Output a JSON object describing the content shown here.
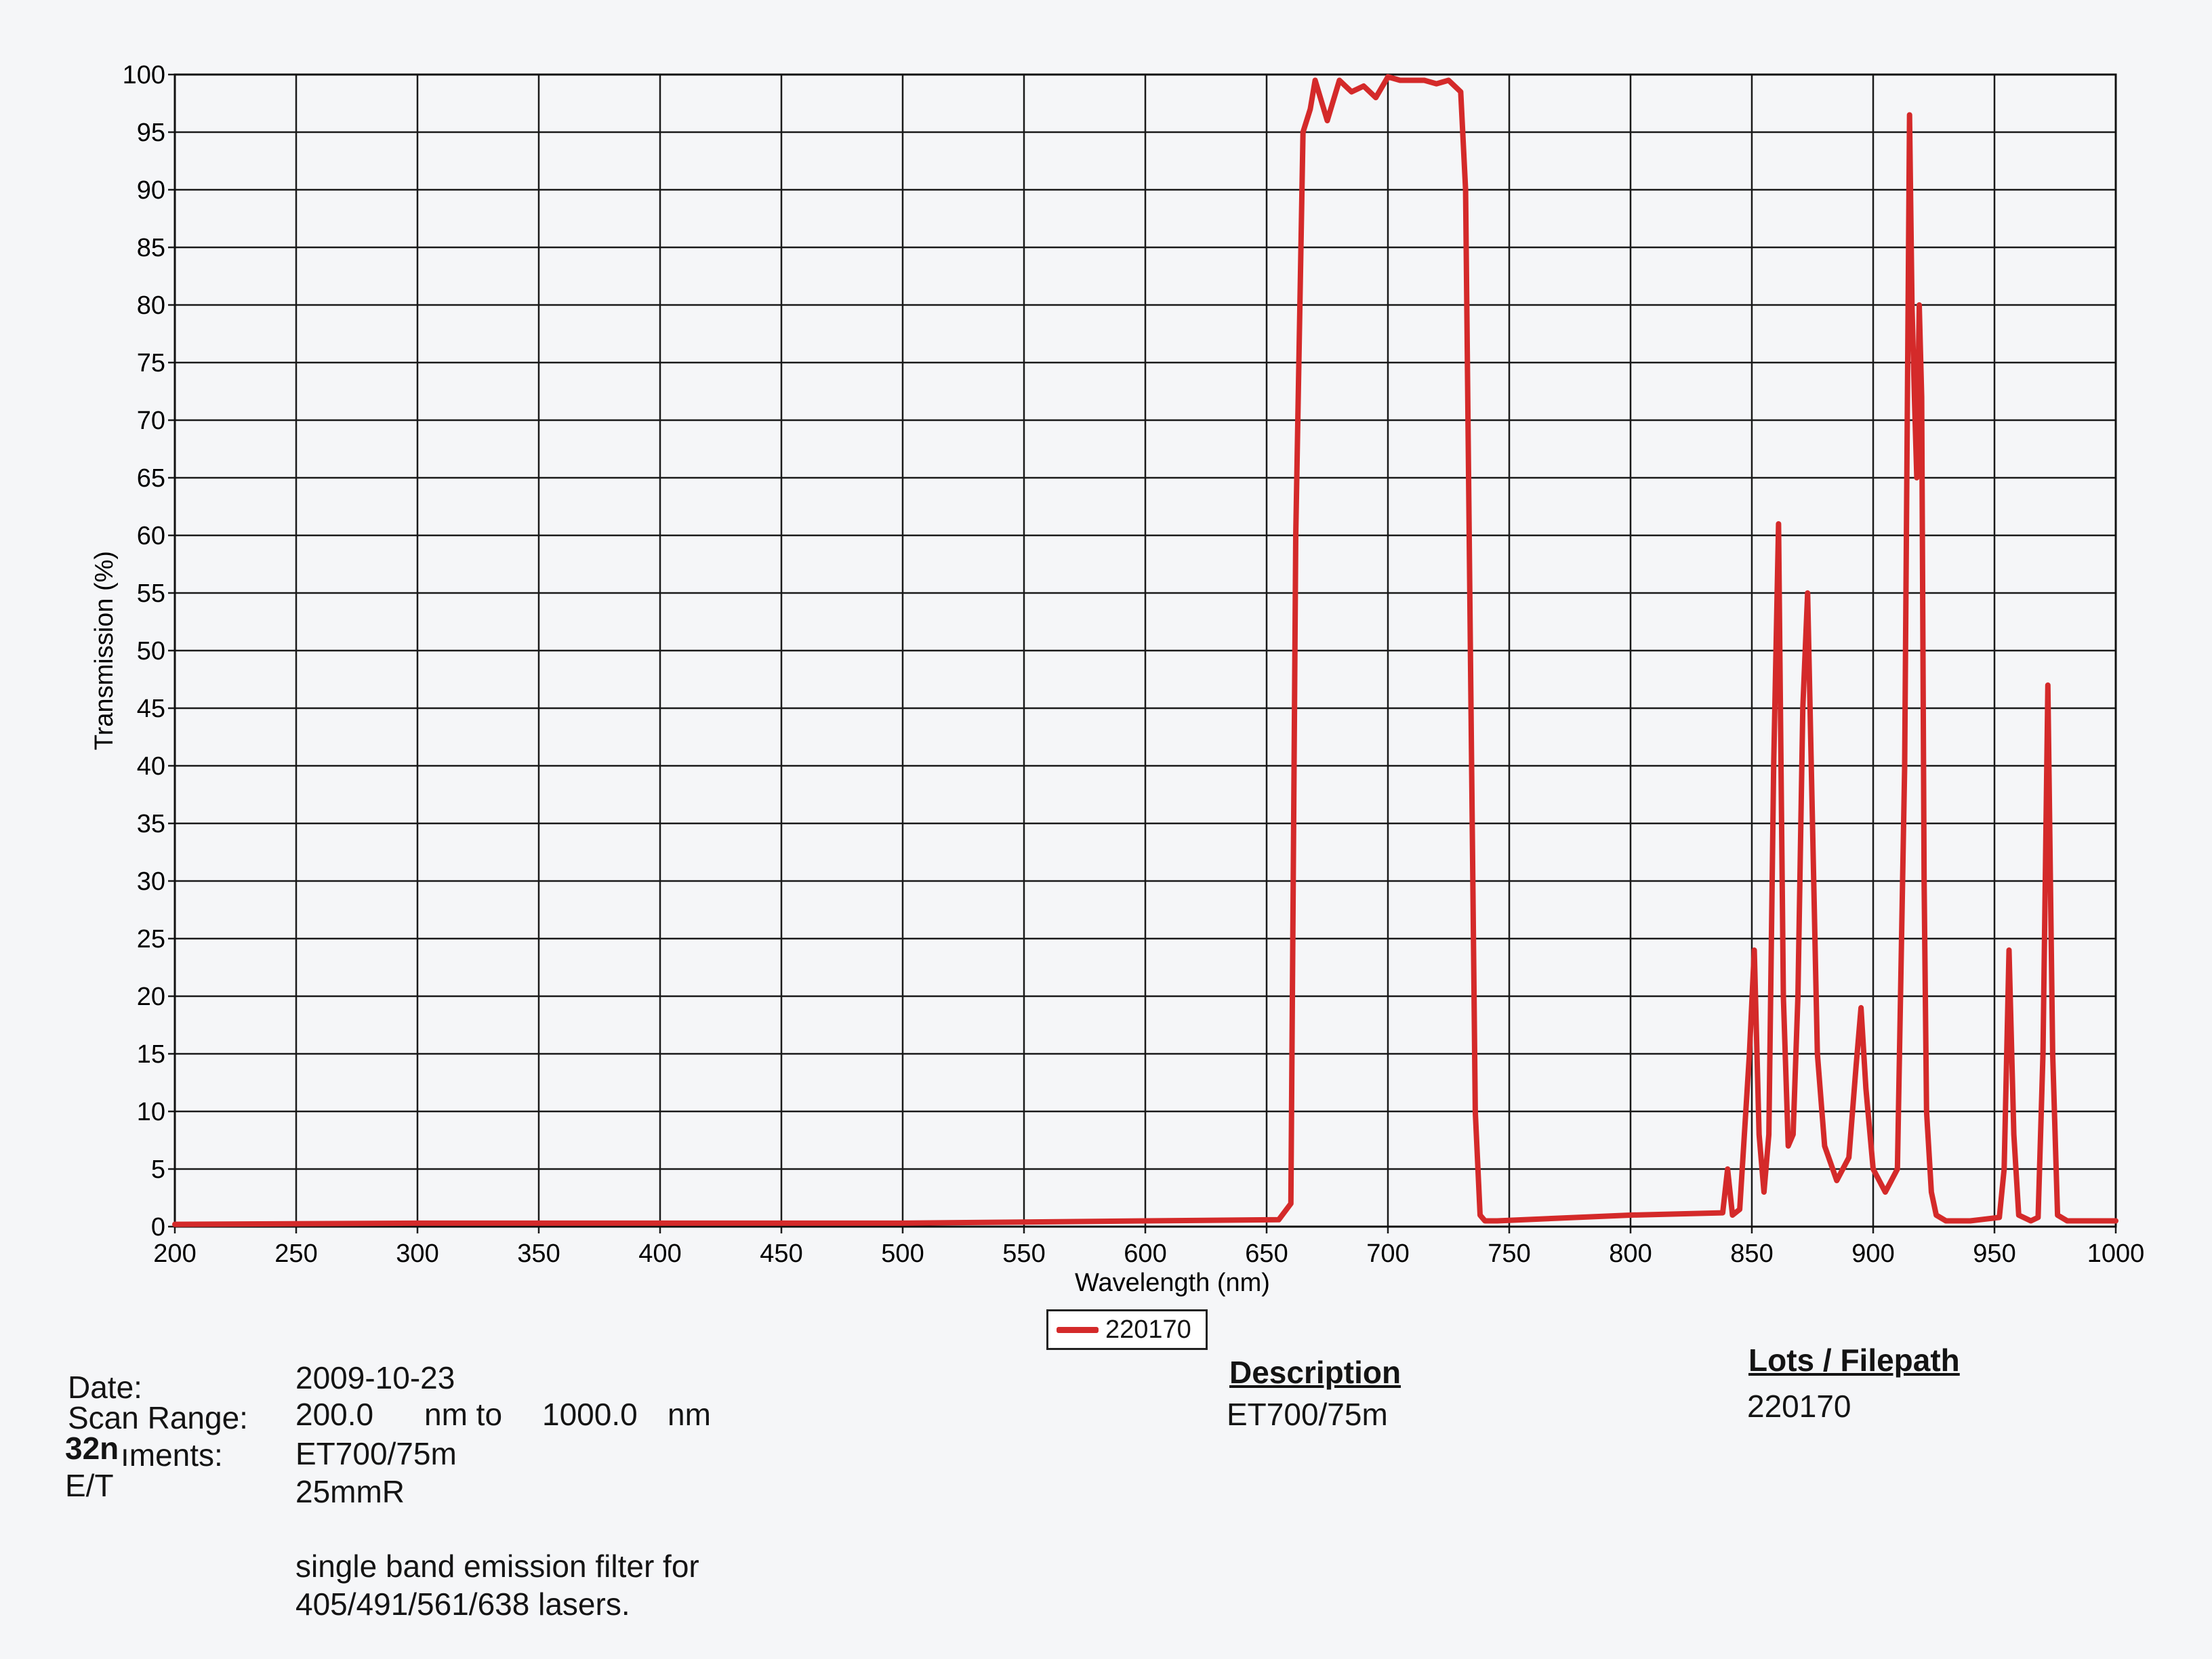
{
  "chart_data": {
    "type": "line",
    "xlabel": "Wavelength (nm)",
    "ylabel": "Transmission (%)",
    "xlim": [
      200,
      1000
    ],
    "ylim": [
      0,
      100
    ],
    "x_ticks": [
      "200",
      "250",
      "300",
      "350",
      "400",
      "450",
      "500",
      "550",
      "600",
      "650",
      "700",
      "750",
      "800",
      "850",
      "900",
      "950",
      "1000"
    ],
    "y_ticks": [
      "0",
      "5",
      "10",
      "15",
      "20",
      "25",
      "30",
      "35",
      "40",
      "45",
      "50",
      "55",
      "60",
      "65",
      "70",
      "75",
      "80",
      "85",
      "90",
      "95",
      "100"
    ],
    "grid": true,
    "legend_position": "bottom-center",
    "series": [
      {
        "name": "220170",
        "color": "#d42a2a",
        "x": [
          200,
          300,
          400,
          500,
          600,
          655,
          660,
          662,
          665,
          668,
          670,
          675,
          680,
          685,
          690,
          695,
          700,
          705,
          710,
          715,
          720,
          725,
          730,
          732,
          734,
          736,
          738,
          740,
          745,
          800,
          838,
          840,
          842,
          845,
          849,
          851,
          853,
          855,
          857,
          859,
          861,
          863,
          865,
          867,
          869,
          871,
          873,
          875,
          877,
          880,
          885,
          890,
          893,
          895,
          897,
          900,
          905,
          910,
          913,
          915,
          916,
          917,
          918,
          919,
          920,
          921,
          922,
          924,
          926,
          930,
          940,
          952,
          954,
          956,
          958,
          960,
          965,
          968,
          970,
          972,
          974,
          976,
          980,
          1000
        ],
        "y": [
          0.2,
          0.3,
          0.3,
          0.3,
          0.5,
          0.6,
          2,
          60,
          95,
          97,
          99.5,
          96,
          99.5,
          98.5,
          99,
          98,
          99.8,
          99.5,
          99.5,
          99.5,
          99.2,
          99.5,
          98.5,
          90,
          50,
          10,
          1,
          0.5,
          0.5,
          1,
          1.2,
          5,
          1,
          1.5,
          15,
          24,
          8,
          3,
          8,
          40,
          61,
          20,
          7,
          8,
          20,
          45,
          55,
          35,
          15,
          7,
          4,
          6,
          14,
          19,
          12,
          5,
          3,
          5,
          40,
          96.5,
          80,
          72,
          65,
          80,
          72,
          30,
          10,
          3,
          1,
          0.5,
          0.5,
          0.8,
          5,
          24,
          8,
          1,
          0.5,
          0.8,
          15,
          47,
          15,
          1,
          0.5,
          0.5
        ]
      }
    ]
  },
  "info": {
    "date_label": "Date:",
    "date_value": "2009-10-23",
    "scan_range_label": "Scan Range:",
    "scan_start": "200.0",
    "nm_to": "nm to",
    "scan_end": "1000.0",
    "nm": "nm",
    "comments_fragment_a": "32n",
    "comments_fragment_b": "ıments:",
    "comments_fragment_c": "E/T",
    "comment_line1": "ET700/75m",
    "comment_line2": "25mmR",
    "comment_line3": "single band emission filter for",
    "comment_line4": "405/491/561/638 lasers.",
    "description_header": "Description",
    "description_value": "ET700/75m",
    "lots_header": "Lots / Filepath",
    "lots_value": "220170"
  }
}
